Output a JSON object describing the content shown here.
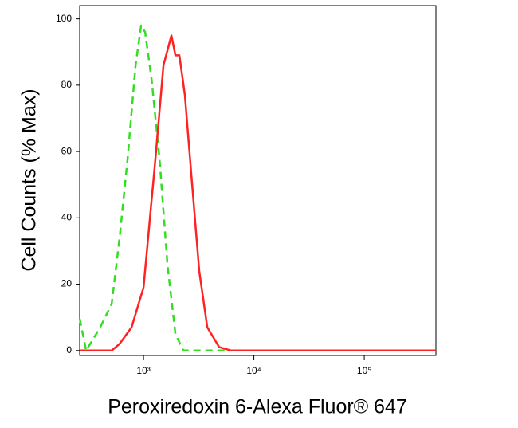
{
  "chart_data": {
    "type": "line",
    "x_label": "Peroxiredoxin 6-Alexa Fluor® 647",
    "y_label": "Cell Counts (% Max)",
    "xscale": "log",
    "xlim": [
      264,
      446000
    ],
    "ylim": [
      -1.5,
      104
    ],
    "xticks": [
      {
        "value": 1000,
        "label": "10³"
      },
      {
        "value": 10000,
        "label": "10⁴"
      },
      {
        "value": 100000,
        "label": "10⁵"
      }
    ],
    "yticks": [
      0,
      20,
      40,
      60,
      80,
      100
    ],
    "series": [
      {
        "color": "#33dd22",
        "linestyle": "dashed",
        "x": [
          264,
          302,
          401,
          514,
          607,
          718,
          847,
          951,
          1034,
          1181,
          1394,
          1647,
          1945,
          2296,
          5000,
          446000
        ],
        "values": [
          9.6,
          0,
          6.7,
          14,
          34,
          58,
          86,
          98,
          96,
          82,
          58,
          26,
          5,
          0,
          0,
          0
        ]
      },
      {
        "color": "#ff2222",
        "linestyle": "solid",
        "x": [
          264,
          514,
          607,
          779,
          1000,
          1283,
          1515,
          1790,
          1945,
          2113,
          2372,
          2711,
          3199,
          3781,
          4856,
          6220,
          446000
        ],
        "values": [
          0,
          0,
          2,
          7,
          19,
          58,
          86,
          95,
          89,
          89,
          77,
          53,
          24,
          7,
          1,
          0,
          0
        ]
      }
    ]
  }
}
